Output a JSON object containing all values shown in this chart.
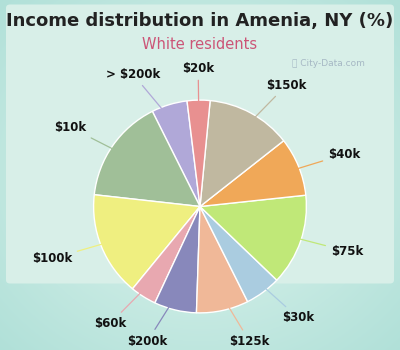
{
  "title": "Income distribution in Amenia, NY (%)",
  "subtitle": "White residents",
  "bg_color": "#00ffff",
  "chart_bg_color": "#d8efe8",
  "labels": [
    "> $200k",
    "$10k",
    "$100k",
    "$60k",
    "$200k",
    "$125k",
    "$30k",
    "$75k",
    "$40k",
    "$150k",
    "$20k"
  ],
  "sizes": [
    5.5,
    16.0,
    16.0,
    4.0,
    6.5,
    8.0,
    5.5,
    14.0,
    9.0,
    13.0,
    3.5
  ],
  "colors": [
    "#b0a8d8",
    "#a0bf98",
    "#efef80",
    "#e8a8b0",
    "#8888bb",
    "#f0b898",
    "#aacce0",
    "#c0e878",
    "#f0a858",
    "#c0b8a0",
    "#e89090"
  ],
  "line_colors": [
    "#b0a8d8",
    "#a0bf98",
    "#efef80",
    "#e8a8b0",
    "#8888bb",
    "#f0b898",
    "#aacce0",
    "#c0e878",
    "#f0a858",
    "#c0b8a0",
    "#e89090"
  ],
  "label_fontsize": 8.5,
  "title_fontsize": 13,
  "subtitle_fontsize": 10.5,
  "title_color": "#222222",
  "subtitle_color": "#cc5577",
  "wedge_edge_color": "white",
  "wedge_linewidth": 1.0,
  "startangle": 97
}
